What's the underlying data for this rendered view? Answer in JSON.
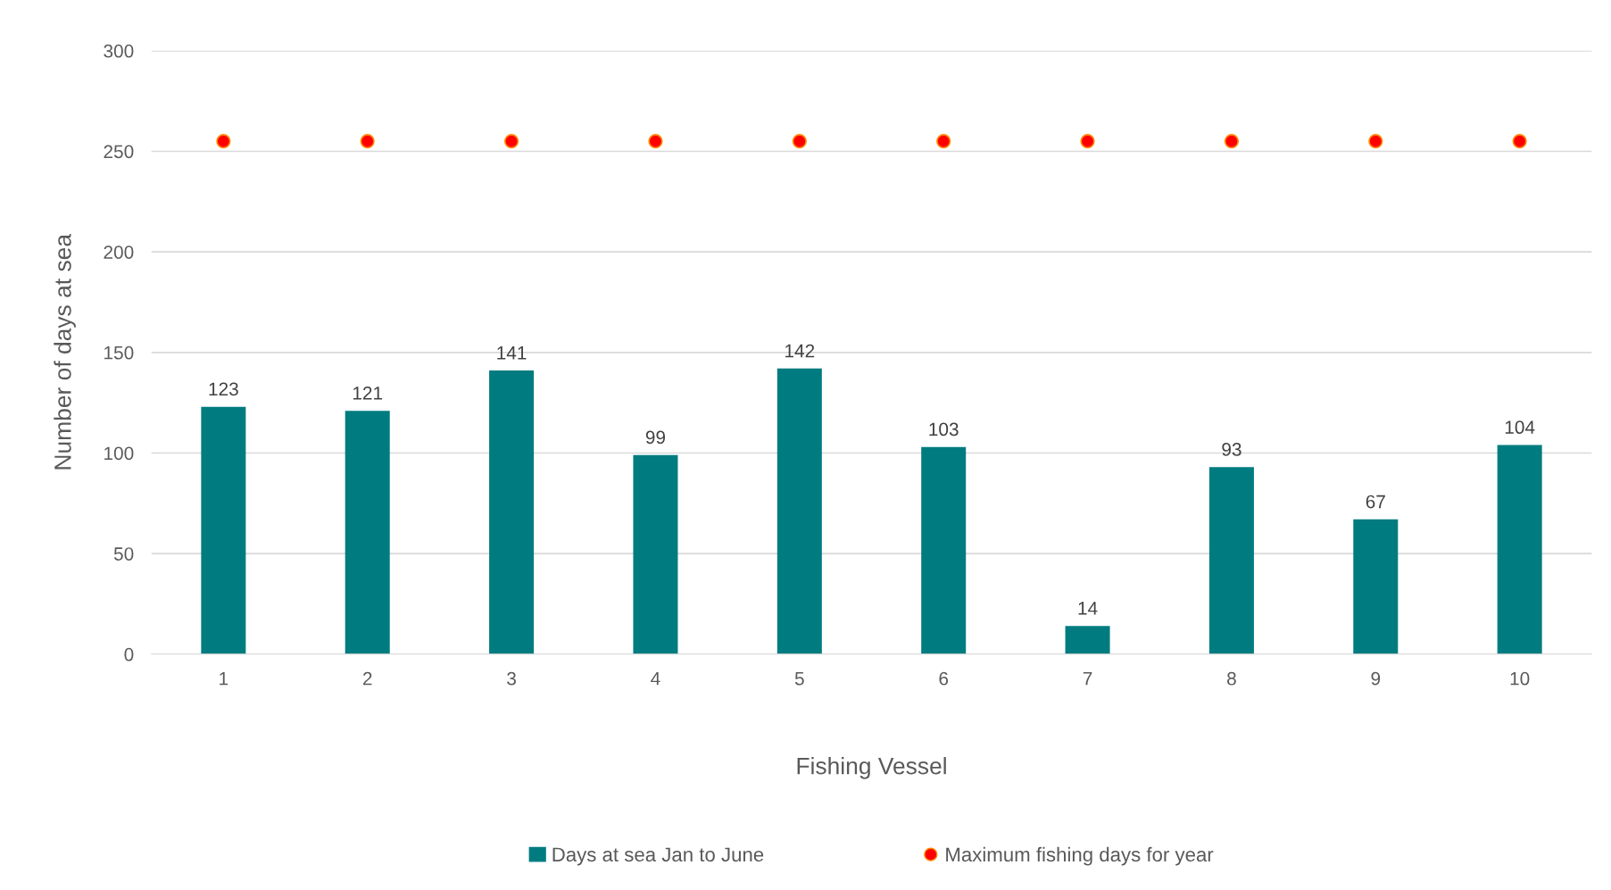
{
  "chart_data": {
    "type": "bar",
    "xlabel": "Fishing Vessel",
    "ylabel": "Number of days at sea",
    "categories": [
      "1",
      "2",
      "3",
      "4",
      "5",
      "6",
      "7",
      "8",
      "9",
      "10"
    ],
    "series": [
      {
        "name": "Days at sea Jan to June",
        "color": "#007c80",
        "values": [
          123,
          121,
          141,
          99,
          142,
          103,
          14,
          93,
          67,
          104
        ],
        "data_labels": true
      },
      {
        "name": "Maximum fishing days for year",
        "type": "scatter",
        "color": "#ff0000",
        "marker": "circle",
        "values": [
          255,
          255,
          255,
          255,
          255,
          255,
          255,
          255,
          255,
          255
        ]
      }
    ],
    "ylim": [
      0,
      300
    ],
    "yticks": [
      0,
      50,
      100,
      150,
      200,
      250,
      300
    ],
    "grid": "y",
    "legend": "bottom"
  }
}
